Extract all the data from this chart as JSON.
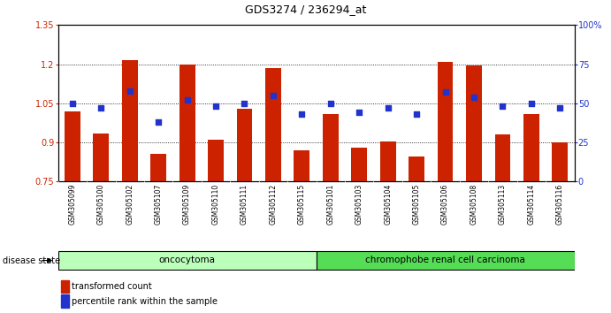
{
  "title": "GDS3274 / 236294_at",
  "samples": [
    "GSM305099",
    "GSM305100",
    "GSM305102",
    "GSM305107",
    "GSM305109",
    "GSM305110",
    "GSM305111",
    "GSM305112",
    "GSM305115",
    "GSM305101",
    "GSM305103",
    "GSM305104",
    "GSM305105",
    "GSM305106",
    "GSM305108",
    "GSM305113",
    "GSM305114",
    "GSM305116"
  ],
  "transformed_count": [
    1.02,
    0.935,
    1.215,
    0.855,
    1.2,
    0.91,
    1.03,
    1.185,
    0.87,
    1.01,
    0.88,
    0.905,
    0.845,
    1.21,
    1.195,
    0.93,
    1.01,
    0.9
  ],
  "percentile_rank": [
    50,
    47,
    58,
    38,
    52,
    48,
    50,
    55,
    43,
    50,
    44,
    47,
    43,
    57,
    54,
    48,
    50,
    47
  ],
  "ylim_left": [
    0.75,
    1.35
  ],
  "ylim_right": [
    0,
    100
  ],
  "bar_color": "#cc2200",
  "dot_color": "#2233cc",
  "xtick_bg": "#cccccc",
  "plot_bg": "#ffffff",
  "yticks_left": [
    0.75,
    0.9,
    1.05,
    1.2,
    1.35
  ],
  "yticks_right": [
    0,
    25,
    50,
    75,
    100
  ],
  "ytick_labels_left": [
    "0.75",
    "0.9",
    "1.05",
    "1.2",
    "1.35"
  ],
  "ytick_labels_right": [
    "0",
    "25",
    "50",
    "75",
    "100%"
  ],
  "oncocytoma_count": 9,
  "chromophobe_count": 9,
  "group1_label": "oncocytoma",
  "group2_label": "chromophobe renal cell carcinoma",
  "group1_color": "#bbffbb",
  "group2_color": "#55dd55",
  "disease_state_label": "disease state",
  "legend1": "transformed count",
  "legend2": "percentile rank within the sample",
  "base_value": 0.75,
  "bar_width": 0.55
}
